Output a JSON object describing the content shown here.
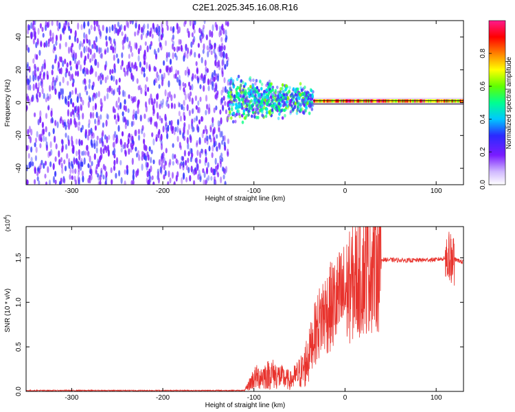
{
  "title": "C2E1.2025.345.16.08.R16",
  "colors": {
    "snr_line": "#e8322c",
    "spectrum_noise": "#7a3cf0",
    "spectrum_core": "#1a1a1a"
  },
  "chart_data": [
    {
      "type": "heatmap",
      "xlabel": "Height of straight line (km)",
      "ylabel": "Frequency (Hz)",
      "xlim": [
        -350,
        130
      ],
      "ylim": [
        -50,
        50
      ],
      "x_ticks": [
        -300,
        -200,
        -100,
        0,
        100
      ],
      "y_ticks": [
        -40,
        -20,
        0,
        20,
        40
      ],
      "x_tick_labels": [
        "-300",
        "-200",
        "-100",
        "0",
        "100"
      ],
      "y_tick_labels": [
        "-40",
        "-20",
        "0",
        "20",
        "40"
      ],
      "colorbar": {
        "label": "Normalized spectral amplitude",
        "range": [
          0,
          1
        ],
        "ticks": [
          0.0,
          0.2,
          0.4,
          0.6,
          0.8
        ],
        "tick_labels": [
          "0.0",
          "0.2",
          "0.4",
          "0.6",
          "0.8"
        ],
        "colormap": [
          "#ffffff",
          "#7a1cff",
          "#3a3aff",
          "#00d8ff",
          "#00ff80",
          "#80ff00",
          "#ffff00",
          "#ff8000",
          "#ff0000",
          "#ff1a8c"
        ]
      },
      "regions": [
        {
          "x_range": [
            -350,
            -128
          ],
          "freq_spread": 50,
          "level": 0.12
        },
        {
          "x_range": [
            -128,
            -35
          ],
          "freq_spread": 12,
          "level": 0.3
        },
        {
          "x_range": [
            -35,
            130
          ],
          "freq_spread": 2,
          "level": 0.75
        }
      ],
      "grid": false
    },
    {
      "type": "line",
      "xlabel": "Height of straight line (km)",
      "ylabel": "SNR (10 * v/v)",
      "scale_label": "(x10",
      "scale_exp": "4",
      "scale_close": ")",
      "xlim": [
        -350,
        130
      ],
      "ylim": [
        0,
        18500
      ],
      "x_ticks": [
        -300,
        -200,
        -100,
        0,
        100
      ],
      "y_ticks": [
        0,
        5000,
        10000,
        15000
      ],
      "x_tick_labels": [
        "-300",
        "-200",
        "-100",
        "0",
        "100"
      ],
      "y_tick_labels": [
        "0.0",
        "0.5",
        "1.0",
        "1.5"
      ],
      "series_profile": {
        "x": [
          -350,
          -110,
          -100,
          -80,
          -60,
          -45,
          -35,
          -25,
          -15,
          0,
          15,
          30,
          40,
          70,
          100,
          115,
          130
        ],
        "y": [
          100,
          100,
          1500,
          2000,
          1200,
          2500,
          6000,
          8500,
          9500,
          11000,
          13000,
          14500,
          14800,
          14700,
          14800,
          15000,
          14500
        ]
      },
      "grid": false
    }
  ]
}
